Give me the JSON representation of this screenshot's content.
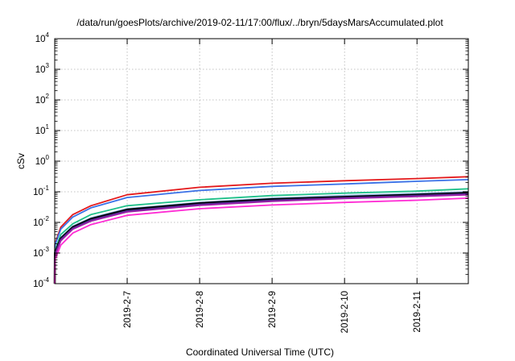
{
  "chart_data": {
    "type": "line",
    "title": "/data/run/goesPlots/archive/2019-02-11/17:00/flux/../bryn/5daysMarsAccumulated.plot",
    "xlabel": "Coordinated Universal Time (UTC)",
    "ylabel": "cSv",
    "yscale": "log",
    "ylim": [
      0.0001,
      10000
    ],
    "xlim": [
      "2019-02-06 00:00",
      "2019-02-11 17:00"
    ],
    "grid": true,
    "legend": "none",
    "x_ticks": [
      "2019-2-7",
      "2019-2-8",
      "2019-2-9",
      "2019-2-10",
      "2019-2-11"
    ],
    "x_tick_values": [
      "2019-02-07",
      "2019-02-08",
      "2019-02-09",
      "2019-02-10",
      "2019-02-11"
    ],
    "y_ticks": [
      {
        "base": "10",
        "exp": "-4",
        "value": 0.0001
      },
      {
        "base": "10",
        "exp": "-3",
        "value": 0.001
      },
      {
        "base": "10",
        "exp": "-2",
        "value": 0.01
      },
      {
        "base": "10",
        "exp": "-1",
        "value": 0.1
      },
      {
        "base": "10",
        "exp": "0",
        "value": 1
      },
      {
        "base": "10",
        "exp": "1",
        "value": 10
      },
      {
        "base": "10",
        "exp": "2",
        "value": 100
      },
      {
        "base": "10",
        "exp": "3",
        "value": 1000
      },
      {
        "base": "10",
        "exp": "4",
        "value": 10000
      }
    ],
    "series": [
      {
        "color": "#e41a1c",
        "x": [
          "2019-02-06 00:05",
          "2019-02-06 02:00",
          "2019-02-06 06:00",
          "2019-02-06 12:00",
          "2019-02-07 00:00",
          "2019-02-08 00:00",
          "2019-02-09 00:00",
          "2019-02-10 00:00",
          "2019-02-11 00:00",
          "2019-02-11 17:00"
        ],
        "y": [
          0.002,
          0.007,
          0.018,
          0.035,
          0.08,
          0.14,
          0.19,
          0.23,
          0.27,
          0.31
        ]
      },
      {
        "color": "#3a72e8",
        "x": [
          "2019-02-06 00:05",
          "2019-02-06 02:00",
          "2019-02-06 06:00",
          "2019-02-06 12:00",
          "2019-02-07 00:00",
          "2019-02-08 00:00",
          "2019-02-09 00:00",
          "2019-02-10 00:00",
          "2019-02-11 00:00",
          "2019-02-11 17:00"
        ],
        "y": [
          0.0018,
          0.006,
          0.015,
          0.03,
          0.065,
          0.11,
          0.15,
          0.18,
          0.22,
          0.25
        ]
      },
      {
        "color": "#1fc08a",
        "x": [
          "2019-02-06 00:05",
          "2019-02-06 02:00",
          "2019-02-06 06:00",
          "2019-02-06 12:00",
          "2019-02-07 00:00",
          "2019-02-08 00:00",
          "2019-02-09 00:00",
          "2019-02-10 00:00",
          "2019-02-11 00:00",
          "2019-02-11 17:00"
        ],
        "y": [
          0.0012,
          0.004,
          0.009,
          0.018,
          0.035,
          0.055,
          0.075,
          0.09,
          0.105,
          0.125
        ]
      },
      {
        "color": "#8ab0e0",
        "x": [
          "2019-02-06 00:05",
          "2019-02-06 02:00",
          "2019-02-06 06:00",
          "2019-02-06 12:00",
          "2019-02-07 00:00",
          "2019-02-08 00:00",
          "2019-02-09 00:00",
          "2019-02-10 00:00",
          "2019-02-11 00:00",
          "2019-02-11 17:00"
        ],
        "y": [
          0.0011,
          0.0032,
          0.0075,
          0.014,
          0.028,
          0.045,
          0.062,
          0.075,
          0.088,
          0.1
        ]
      },
      {
        "color": "#000000",
        "x": [
          "2019-02-06 00:05",
          "2019-02-06 02:00",
          "2019-02-06 06:00",
          "2019-02-06 12:00",
          "2019-02-07 00:00",
          "2019-02-08 00:00",
          "2019-02-09 00:00",
          "2019-02-10 00:00",
          "2019-02-11 00:00",
          "2019-02-11 17:00"
        ],
        "y": [
          0.001,
          0.003,
          0.007,
          0.013,
          0.026,
          0.042,
          0.057,
          0.068,
          0.08,
          0.092
        ]
      },
      {
        "color": "#4b2a8c",
        "x": [
          "2019-02-06 00:05",
          "2019-02-06 02:00",
          "2019-02-06 06:00",
          "2019-02-06 12:00",
          "2019-02-07 00:00",
          "2019-02-08 00:00",
          "2019-02-09 00:00",
          "2019-02-10 00:00",
          "2019-02-11 00:00",
          "2019-02-11 17:00"
        ],
        "y": [
          0.0009,
          0.0028,
          0.0065,
          0.012,
          0.024,
          0.039,
          0.053,
          0.064,
          0.075,
          0.086
        ]
      },
      {
        "color": "#9a1fa8",
        "x": [
          "2019-02-06 00:05",
          "2019-02-06 02:00",
          "2019-02-06 06:00",
          "2019-02-06 12:00",
          "2019-02-07 00:00",
          "2019-02-08 00:00",
          "2019-02-09 00:00",
          "2019-02-10 00:00",
          "2019-02-11 00:00",
          "2019-02-11 17:00"
        ],
        "y": [
          0.0008,
          0.0025,
          0.006,
          0.011,
          0.022,
          0.036,
          0.049,
          0.06,
          0.07,
          0.08
        ]
      },
      {
        "color": "#ff2ad4",
        "x": [
          "2019-02-06 00:05",
          "2019-02-06 02:00",
          "2019-02-06 06:00",
          "2019-02-06 12:00",
          "2019-02-07 00:00",
          "2019-02-08 00:00",
          "2019-02-09 00:00",
          "2019-02-10 00:00",
          "2019-02-11 00:00",
          "2019-02-11 17:00"
        ],
        "y": [
          0.0006,
          0.0018,
          0.0045,
          0.0085,
          0.017,
          0.028,
          0.037,
          0.045,
          0.053,
          0.062
        ]
      }
    ]
  }
}
